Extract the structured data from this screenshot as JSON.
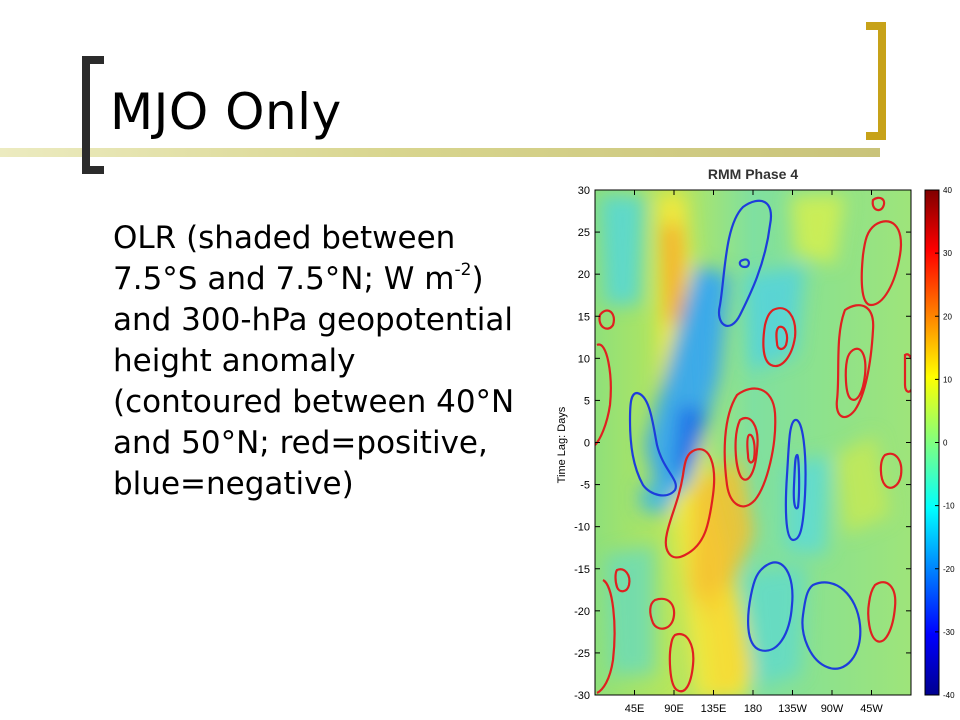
{
  "slide": {
    "title": "MJO Only",
    "body": {
      "part1": "OLR (shaded between 7.5°S and 7.5°N; W m",
      "sup": "-2",
      "part2": ") and 300-hPa geopotential height anomaly (contoured between 40°N and 50°N; red=positive, blue=negative)"
    }
  },
  "chart_data": {
    "type": "heatmap",
    "title": "RMM Phase 4",
    "ylabel": "Time Lag: Days",
    "xlabel": "",
    "x_ticks": [
      "45E",
      "90E",
      "135E",
      "180",
      "135W",
      "90W",
      "45W"
    ],
    "y_ticks": [
      "30",
      "25",
      "20",
      "15",
      "10",
      "5",
      "0",
      "-5",
      "-10",
      "-15",
      "-20",
      "-25",
      "-30"
    ],
    "ylim": [
      -30,
      30
    ],
    "colorbar": {
      "ticks": [
        "40",
        "30",
        "20",
        "10",
        "0",
        "-10",
        "-20",
        "-30",
        "-40"
      ],
      "range": [
        -40,
        40
      ],
      "colormap": "jet"
    },
    "contour_colors": {
      "positive": "#e02020",
      "negative": "#1d3ddb"
    }
  },
  "colors": {
    "bracket_left": "#2b2b2b",
    "bracket_right": "#c7a219",
    "rule": "#d8d58e"
  }
}
